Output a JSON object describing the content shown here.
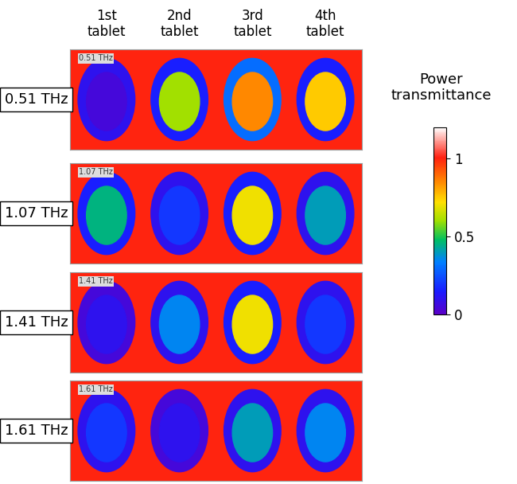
{
  "chart_data": {
    "type": "heatmap",
    "columns": [
      "1st\ntablet",
      "2nd\ntablet",
      "3rd\ntablet",
      "4th\ntablet"
    ],
    "rows": [
      {
        "label": "0.51 THz",
        "cells": [
          {
            "edge": 0.1,
            "center": 0.05
          },
          {
            "edge": 0.15,
            "center": 0.6
          },
          {
            "edge": 0.3,
            "center": 0.85
          },
          {
            "edge": 0.15,
            "center": 0.75
          }
        ]
      },
      {
        "label": "1.07 THz",
        "cells": [
          {
            "edge": 0.15,
            "center": 0.45
          },
          {
            "edge": 0.1,
            "center": 0.2
          },
          {
            "edge": 0.15,
            "center": 0.7
          },
          {
            "edge": 0.1,
            "center": 0.4
          }
        ]
      },
      {
        "label": "1.41 THz",
        "cells": [
          {
            "edge": 0.05,
            "center": 0.1
          },
          {
            "edge": 0.1,
            "center": 0.35
          },
          {
            "edge": 0.15,
            "center": 0.7
          },
          {
            "edge": 0.1,
            "center": 0.2
          }
        ]
      },
      {
        "label": "1.61 THz",
        "cells": [
          {
            "edge": 0.1,
            "center": 0.2
          },
          {
            "edge": 0.05,
            "center": 0.1
          },
          {
            "edge": 0.1,
            "center": 0.4
          },
          {
            "edge": 0.1,
            "center": 0.35
          }
        ]
      }
    ],
    "background": 1.0,
    "colorbar_title": "Power\ntransmittance",
    "colorbar_range": [
      0,
      1.2
    ],
    "colorbar_ticks": [
      0,
      0.5,
      1
    ],
    "tick_labels": false
  }
}
